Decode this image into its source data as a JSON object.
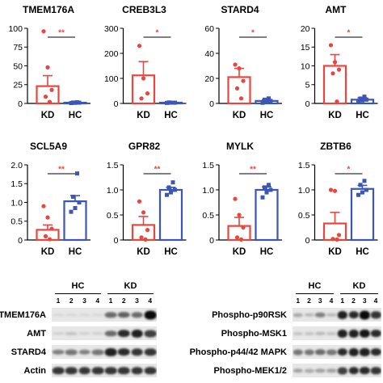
{
  "chart_data": [
    {
      "type": "bar",
      "title": "TMEM176A",
      "categories": [
        "KD",
        "HC"
      ],
      "values": [
        23,
        1
      ],
      "errors": [
        14,
        0.5
      ],
      "ylim": [
        0,
        100
      ],
      "yticks": [
        "0",
        "25",
        "50",
        "75",
        "100"
      ],
      "significance": "**",
      "points": [
        [
          96,
          48,
          18,
          9,
          2
        ],
        [
          0.5,
          0.8,
          1,
          1.2,
          1.5
        ]
      ]
    },
    {
      "type": "bar",
      "title": "CREB3L3",
      "categories": [
        "KD",
        "HC"
      ],
      "values": [
        112,
        3
      ],
      "errors": [
        55,
        1
      ],
      "ylim": [
        0,
        300
      ],
      "yticks": [
        "0",
        "100",
        "200",
        "300"
      ],
      "significance": "*",
      "points": [
        [
          230,
          100,
          40,
          20
        ],
        [
          2,
          3,
          3,
          4
        ]
      ]
    },
    {
      "type": "bar",
      "title": "STARD4",
      "categories": [
        "KD",
        "HC"
      ],
      "values": [
        21,
        2
      ],
      "errors": [
        7,
        1
      ],
      "ylim": [
        0,
        60
      ],
      "yticks": [
        "0",
        "20",
        "40",
        "60"
      ],
      "significance": "*",
      "points": [
        [
          31,
          28,
          18,
          12,
          4
        ],
        [
          0.5,
          1,
          2,
          3,
          4
        ]
      ]
    },
    {
      "type": "bar",
      "title": "AMT",
      "categories": [
        "KD",
        "HC"
      ],
      "values": [
        10,
        1
      ],
      "errors": [
        3,
        0.5
      ],
      "ylim": [
        0,
        20
      ],
      "yticks": [
        "0",
        "5",
        "10",
        "15",
        "20"
      ],
      "significance": "*",
      "points": [
        [
          15.5,
          11,
          9,
          8,
          0.5
        ],
        [
          0.5,
          0.8,
          1,
          1.3,
          1.8
        ]
      ]
    },
    {
      "type": "bar",
      "title": "SCL5A9",
      "categories": [
        "KD",
        "HC"
      ],
      "values": [
        0.27,
        1.03
      ],
      "errors": [
        0.13,
        0.15
      ],
      "ylim": [
        0,
        2.0
      ],
      "yticks": [
        "0",
        "0.5",
        "1.0",
        "1.5",
        "2.0"
      ],
      "significance": "**",
      "points": [
        [
          0.9,
          0.6,
          0.3,
          0.1,
          0.02
        ],
        [
          0.75,
          0.85,
          1.0,
          1.15,
          1.77
        ]
      ]
    },
    {
      "type": "bar",
      "title": "GPR82",
      "categories": [
        "KD",
        "HC"
      ],
      "values": [
        0.3,
        1.0
      ],
      "errors": [
        0.17,
        0.05
      ],
      "ylim": [
        0,
        1.5
      ],
      "yticks": [
        "0",
        "0.5",
        "1.0",
        "1.5"
      ],
      "significance": "**",
      "points": [
        [
          0.77,
          0.55,
          0.2,
          0.05,
          0.01
        ],
        [
          0.9,
          0.95,
          1.0,
          1.05,
          1.15
        ]
      ]
    },
    {
      "type": "bar",
      "title": "MYLK",
      "categories": [
        "KD",
        "HC"
      ],
      "values": [
        0.28,
        1.0
      ],
      "errors": [
        0.17,
        0.06
      ],
      "ylim": [
        0,
        1.5
      ],
      "yticks": [
        "0",
        "0.5",
        "1.0",
        "1.5"
      ],
      "significance": "**",
      "points": [
        [
          0.82,
          0.5,
          0.25,
          0.05,
          0.01
        ],
        [
          0.85,
          0.95,
          1.0,
          1.05,
          1.1
        ]
      ]
    },
    {
      "type": "bar",
      "title": "ZBTB6",
      "categories": [
        "KD",
        "HC"
      ],
      "values": [
        0.33,
        1.02
      ],
      "errors": [
        0.22,
        0.07
      ],
      "ylim": [
        0,
        1.5
      ],
      "yticks": [
        "0",
        "0.5",
        "1.0",
        "1.5"
      ],
      "significance": "*",
      "points": [
        [
          1.0,
          0.98,
          0.1,
          0.02,
          0.01
        ],
        [
          0.9,
          0.95,
          1.0,
          1.1,
          1.18
        ]
      ]
    }
  ],
  "colors": {
    "kd": "#e8463f",
    "hc": "#3d55b5"
  },
  "blots_left": {
    "groups": [
      {
        "label": "HC",
        "lanes": [
          "1",
          "2",
          "3",
          "4"
        ]
      },
      {
        "label": "KD",
        "lanes": [
          "1",
          "2",
          "3",
          "4"
        ]
      }
    ],
    "rows": [
      {
        "label": "TMEM176A",
        "intensity": [
          0.05,
          0.05,
          0.05,
          0.05,
          0.55,
          0.6,
          0.55,
          1.0
        ]
      },
      {
        "label": "AMT",
        "intensity": [
          0.1,
          0.15,
          0.1,
          0.1,
          0.55,
          0.85,
          0.9,
          0.75
        ]
      },
      {
        "label": "STARD4",
        "intensity": [
          0.45,
          0.5,
          0.45,
          0.5,
          0.9,
          0.85,
          0.8,
          0.8
        ]
      },
      {
        "label": "Actin",
        "intensity": [
          0.8,
          0.8,
          0.8,
          0.8,
          0.8,
          0.8,
          0.8,
          0.8
        ]
      }
    ]
  },
  "blots_right": {
    "groups": [
      {
        "label": "HC",
        "lanes": [
          "1",
          "2",
          "3",
          "4"
        ]
      },
      {
        "label": "KD",
        "lanes": [
          "1",
          "2",
          "3",
          "4"
        ]
      }
    ],
    "rows": [
      {
        "label": "Phospho-p90RSK",
        "intensity": [
          0.25,
          0.2,
          0.45,
          0.2,
          0.9,
          0.85,
          1.0,
          0.8
        ]
      },
      {
        "label": "Phospho-MSK1",
        "intensity": [
          0.15,
          0.15,
          0.2,
          0.15,
          0.9,
          0.9,
          0.95,
          0.85
        ]
      },
      {
        "label": "Phospho-p44/42 MAPK",
        "intensity": [
          0.5,
          0.5,
          0.55,
          0.5,
          0.85,
          0.9,
          0.9,
          0.85
        ]
      },
      {
        "label": "Phospho-MEK1/2",
        "intensity": [
          0.3,
          0.25,
          0.3,
          0.3,
          0.75,
          0.85,
          0.85,
          0.8
        ]
      }
    ]
  }
}
